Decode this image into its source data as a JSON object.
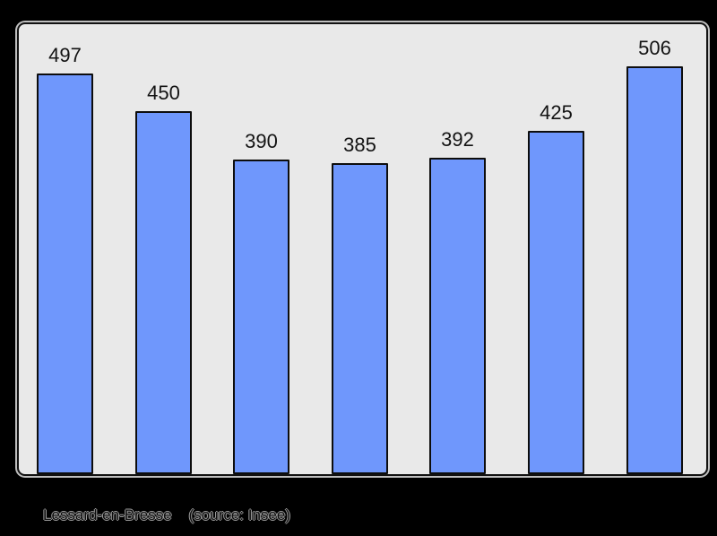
{
  "chart_data": {
    "type": "bar",
    "title": "",
    "values": [
      497,
      450,
      390,
      385,
      392,
      425,
      506
    ],
    "caption": "Lessard-en-Bresse",
    "source_note": "(source: Insee)",
    "ylim": [
      0,
      558
    ],
    "grid": false,
    "legend": false,
    "colors": {
      "page_background": "#000000",
      "plot_background": "#e9e9e9",
      "bar_fill": "#6f97fc",
      "bar_border": "#0d0d0d",
      "frame_border": "#121212",
      "value_label_text": "#131313",
      "caption_text": "#9e9e9e"
    }
  }
}
